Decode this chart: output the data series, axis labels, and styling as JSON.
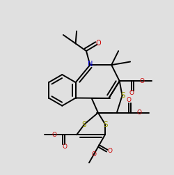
{
  "bg_color": "#e0e0e0",
  "bond_color": "#000000",
  "s_color": "#999900",
  "n_color": "#0000cc",
  "o_color": "#cc0000",
  "lw": 1.4,
  "dbo": 0.012
}
